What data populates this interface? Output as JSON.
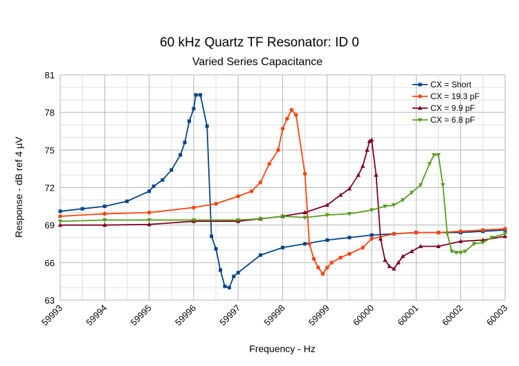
{
  "chart_data": {
    "type": "line",
    "title": "60 kHz Quartz TF Resonator: ID 0",
    "subtitle": "Varied Series Capacitance",
    "xlabel": "Frequency - Hz",
    "ylabel": "Response - dB ref 4 µV",
    "xlim": [
      59993,
      60003
    ],
    "ylim": [
      63,
      81
    ],
    "xticks": [
      59993,
      59994,
      59995,
      59996,
      59997,
      59998,
      59999,
      60000,
      60001,
      60002,
      60003
    ],
    "yticks": [
      63,
      66,
      69,
      72,
      75,
      78,
      81
    ],
    "grid": true,
    "legend_position": "top-right",
    "series": [
      {
        "name": "CX = Short",
        "color": "#004586",
        "marker": "square",
        "x": [
          59993,
          59993.5,
          59994,
          59994.5,
          59995,
          59995.1,
          59995.3,
          59995.5,
          59995.7,
          59995.8,
          59995.9,
          59996.0,
          59996.05,
          59996.15,
          59996.3,
          59996.4,
          59996.5,
          59996.6,
          59996.7,
          59996.8,
          59996.9,
          59997,
          59997.5,
          59998,
          59998.5,
          59999,
          59999.5,
          60000,
          60000.5,
          60001,
          60001.5,
          60002,
          60002.5,
          60003
        ],
        "y": [
          70.1,
          70.3,
          70.5,
          70.9,
          71.7,
          72.1,
          72.6,
          73.4,
          74.6,
          75.6,
          77.3,
          78.3,
          79.4,
          79.4,
          76.9,
          68.1,
          67.1,
          65.4,
          64.1,
          64.0,
          64.9,
          65.2,
          66.6,
          67.2,
          67.5,
          67.8,
          68.0,
          68.2,
          68.3,
          68.4,
          68.4,
          68.4,
          68.5,
          68.6
        ]
      },
      {
        "name": "CX = 19.3 pF",
        "color": "#ff420e",
        "marker": "circle",
        "x": [
          59993,
          59994,
          59995,
          59996,
          59996.5,
          59997,
          59997.3,
          59997.5,
          59997.7,
          59997.9,
          59998,
          59998.1,
          59998.2,
          59998.3,
          59998.5,
          59998.6,
          59998.7,
          59998.8,
          59998.9,
          59999.0,
          59999.1,
          59999.3,
          59999.5,
          59999.8,
          60000,
          60000.5,
          60001,
          60001.5,
          60002,
          60002.5,
          60003
        ],
        "y": [
          69.7,
          69.9,
          70.0,
          70.4,
          70.7,
          71.3,
          71.7,
          72.4,
          73.9,
          75.0,
          76.7,
          77.5,
          78.2,
          77.8,
          73.1,
          67.5,
          66.3,
          65.6,
          65.1,
          65.6,
          66.0,
          66.4,
          66.7,
          67.2,
          67.9,
          68.3,
          68.4,
          68.4,
          68.5,
          68.6,
          68.7
        ]
      },
      {
        "name": "CX = 9.9 pF",
        "color": "#7e0021",
        "marker": "triangle-up",
        "x": [
          59993,
          59994,
          59995,
          59996,
          59997,
          59997.5,
          59998,
          59998.5,
          59999,
          59999.3,
          59999.5,
          59999.7,
          59999.8,
          59999.9,
          59999.95,
          60000.0,
          60000.1,
          60000.2,
          60000.3,
          60000.4,
          60000.5,
          60000.6,
          60000.7,
          60000.9,
          60001.1,
          60001.5,
          60002,
          60002.5,
          60003
        ],
        "y": [
          69.0,
          69.0,
          69.05,
          69.3,
          69.3,
          69.5,
          69.7,
          70.0,
          70.6,
          71.4,
          71.9,
          73.0,
          73.7,
          75.0,
          75.7,
          75.8,
          73.0,
          67.9,
          66.2,
          65.7,
          65.5,
          66.0,
          66.5,
          66.9,
          67.3,
          67.3,
          67.7,
          67.8,
          68.1
        ]
      },
      {
        "name": "CX = 6.8 pF",
        "color": "#579d1c",
        "marker": "triangle-down",
        "x": [
          59993,
          59994,
          59995,
          59996,
          59997,
          59997.5,
          59998,
          59998.5,
          59999,
          59999.5,
          60000,
          60000.3,
          60000.5,
          60000.7,
          60000.9,
          60001.1,
          60001.3,
          60001.4,
          60001.5,
          60001.6,
          60001.7,
          60001.8,
          60001.9,
          60002.0,
          60002.1,
          60002.3,
          60002.5,
          60002.7,
          60003
        ],
        "y": [
          69.3,
          69.4,
          69.4,
          69.4,
          69.4,
          69.5,
          69.7,
          69.6,
          69.8,
          69.9,
          70.2,
          70.5,
          70.6,
          71.0,
          71.6,
          72.2,
          73.9,
          74.6,
          74.6,
          72.2,
          68.3,
          66.9,
          66.8,
          66.8,
          66.9,
          67.5,
          67.6,
          68.0,
          68.3
        ]
      }
    ]
  }
}
